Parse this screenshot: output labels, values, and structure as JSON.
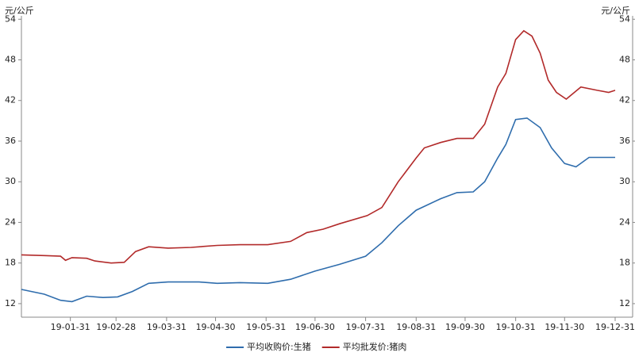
{
  "chart_data": {
    "type": "line",
    "y_unit_left": "元/公斤",
    "y_unit_right": "元/公斤",
    "series": [
      {
        "name": "平均收购价:生猪",
        "color": "#2f6dad",
        "x": [
          "19-01-01",
          "19-01-15",
          "19-01-25",
          "19-02-01",
          "19-02-10",
          "19-02-20",
          "19-03-01",
          "19-03-10",
          "19-03-20",
          "19-04-01",
          "19-04-20",
          "19-05-01",
          "19-05-15",
          "19-06-01",
          "19-06-15",
          "19-06-30",
          "19-07-15",
          "19-07-31",
          "19-08-10",
          "19-08-20",
          "19-08-31",
          "19-09-15",
          "19-09-25",
          "19-10-05",
          "19-10-12",
          "19-10-20",
          "19-10-25",
          "19-10-31",
          "19-11-07",
          "19-11-15",
          "19-11-22",
          "19-11-30",
          "19-12-07",
          "19-12-15",
          "19-12-31"
        ],
        "values": [
          14.1,
          13.4,
          12.5,
          12.3,
          13.1,
          12.9,
          13.0,
          13.8,
          15.0,
          15.2,
          15.2,
          15.0,
          15.1,
          15.0,
          15.6,
          16.8,
          17.8,
          19.0,
          21.0,
          23.5,
          25.8,
          27.5,
          28.4,
          28.5,
          30.0,
          33.5,
          35.5,
          39.2,
          39.4,
          38.0,
          35.0,
          32.7,
          32.2,
          33.6,
          33.6
        ]
      },
      {
        "name": "平均批发价:猪肉",
        "color": "#b22a2a",
        "x": [
          "19-01-01",
          "19-01-15",
          "19-01-25",
          "19-01-28",
          "19-02-01",
          "19-02-10",
          "19-02-15",
          "19-02-25",
          "19-03-05",
          "19-03-12",
          "19-03-20",
          "19-04-01",
          "19-04-15",
          "19-05-01",
          "19-05-15",
          "19-06-01",
          "19-06-15",
          "19-06-25",
          "19-07-05",
          "19-07-15",
          "19-08-01",
          "19-08-10",
          "19-08-20",
          "19-08-31",
          "19-09-05",
          "19-09-15",
          "19-09-25",
          "19-10-05",
          "19-10-12",
          "19-10-20",
          "19-10-25",
          "19-10-31",
          "19-11-05",
          "19-11-10",
          "19-11-15",
          "19-11-20",
          "19-11-25",
          "19-12-01",
          "19-12-10",
          "19-12-20",
          "19-12-27",
          "19-12-31"
        ],
        "values": [
          19.2,
          19.1,
          19.0,
          18.4,
          18.8,
          18.7,
          18.3,
          18.0,
          18.1,
          19.7,
          20.4,
          20.2,
          20.3,
          20.6,
          20.7,
          20.7,
          21.2,
          22.5,
          23.0,
          23.8,
          25.0,
          26.2,
          30.0,
          33.5,
          35.0,
          35.8,
          36.4,
          36.4,
          38.5,
          44.0,
          46.0,
          51.0,
          52.3,
          51.5,
          49.0,
          45.0,
          43.2,
          42.2,
          44.0,
          43.5,
          43.2,
          43.5
        ]
      }
    ],
    "xlim": [
      "19-01-01",
      "19-12-31"
    ],
    "xticks": [
      "19-01-31",
      "19-02-28",
      "19-03-31",
      "19-04-30",
      "19-05-31",
      "19-06-30",
      "19-07-31",
      "19-08-31",
      "19-09-30",
      "19-10-31",
      "19-11-30",
      "19-12-31"
    ],
    "ylim": [
      10,
      54.5
    ],
    "yticks": [
      12,
      18,
      24,
      30,
      36,
      42,
      48,
      54
    ],
    "y2lim": [
      10,
      54.5
    ],
    "y2ticks": [
      12,
      18,
      24,
      30,
      36,
      42,
      48,
      54
    ]
  }
}
